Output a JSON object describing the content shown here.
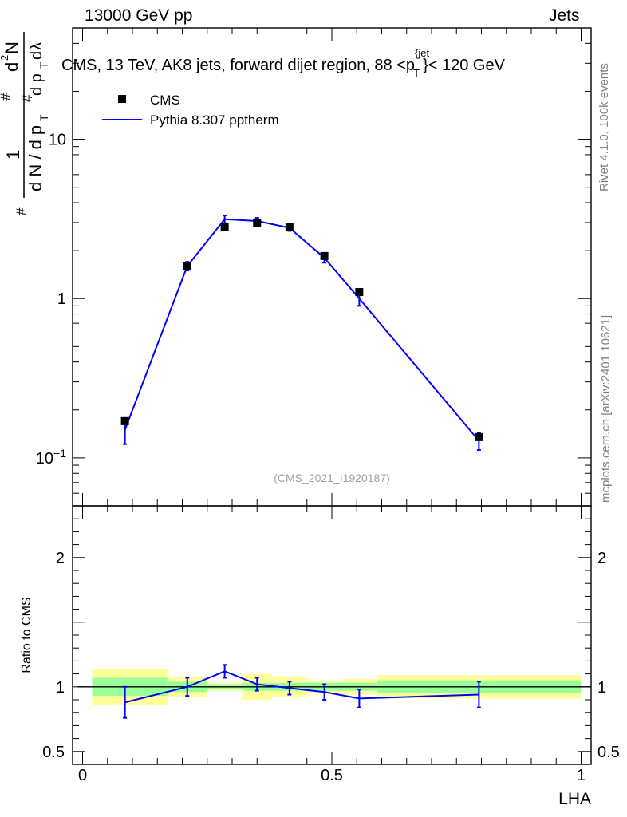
{
  "header": {
    "left": "13000 GeV pp",
    "right": "Jets"
  },
  "side_labels": {
    "rivet": "Rivet 4.1.0,  100k events",
    "source": "mcplots.cern.ch [arXiv:2401.10621]"
  },
  "chart_data": {
    "type": "line",
    "title": "CMS, 13 TeV, AK8 jets, forward dijet region, 88 <p_T^{jet}> < 120 GeV",
    "title_parts": {
      "prefix": "CMS, 13 TeV, AK8 jets, forward dijet region, 88 <p",
      "sup": "{jet",
      "sub": "T",
      "suffix": "}< 120 GeV"
    },
    "analysis_id": "(CMS_2021_I1920187)",
    "xlabel": "LHA",
    "ylabel": "1/dN/dp_T  d²N/dp_T dλ",
    "ratio_ylabel": "Ratio to CMS",
    "xlim": [
      -0.02,
      1.02
    ],
    "ylim_log": [
      0.05,
      50
    ],
    "ratio_ylim": [
      0.4,
      2.4
    ],
    "x_ticks": [
      {
        "v": 0,
        "label": "0"
      },
      {
        "v": 0.5,
        "label": "0.5"
      },
      {
        "v": 1,
        "label": "1"
      }
    ],
    "y_ticks": [
      {
        "v": 0.1,
        "label": "10",
        "exp": "−1"
      },
      {
        "v": 1,
        "label": "1"
      },
      {
        "v": 10,
        "label": "10"
      }
    ],
    "ratio_ticks": [
      {
        "v": 0.5,
        "label": "0.5"
      },
      {
        "v": 1,
        "label": "1"
      },
      {
        "v": 2,
        "label": "2"
      }
    ],
    "legend": {
      "data_label": "CMS",
      "mc_label": "Pythia 8.307 pptherm"
    },
    "bins": [
      {
        "lo": 0.0,
        "hi": 0.17,
        "data": 0.17,
        "data_err": 0.008,
        "mc": 0.15,
        "mc_err": 0.028,
        "ratio": 0.88,
        "ratio_err": 0.12,
        "band_stat": 0.07,
        "band_tot": 0.14
      },
      {
        "lo": 0.17,
        "hi": 0.25,
        "data": 1.6,
        "data_err": 0.05,
        "mc": 1.6,
        "mc_err": 0.1,
        "ratio": 1.0,
        "ratio_err": 0.07,
        "band_stat": 0.04,
        "band_tot": 0.08
      },
      {
        "lo": 0.25,
        "hi": 0.32,
        "data": 2.8,
        "data_err": 0.06,
        "mc": 3.15,
        "mc_err": 0.18,
        "ratio": 1.12,
        "ratio_err": 0.05,
        "band_stat": 0.02,
        "band_tot": 0.03
      },
      {
        "lo": 0.32,
        "hi": 0.38,
        "data": 3.0,
        "data_err": 0.08,
        "mc": 3.07,
        "mc_err": 0.14,
        "ratio": 1.02,
        "ratio_err": 0.05,
        "band_stat": 0.03,
        "band_tot": 0.1
      },
      {
        "lo": 0.38,
        "hi": 0.45,
        "data": 2.8,
        "data_err": 0.07,
        "mc": 2.78,
        "mc_err": 0.12,
        "ratio": 0.99,
        "ratio_err": 0.05,
        "band_stat": 0.03,
        "band_tot": 0.08
      },
      {
        "lo": 0.45,
        "hi": 0.52,
        "data": 1.85,
        "data_err": 0.06,
        "mc": 1.8,
        "mc_err": 0.12,
        "ratio": 0.96,
        "ratio_err": 0.06,
        "band_stat": 0.03,
        "band_tot": 0.05
      },
      {
        "lo": 0.52,
        "hi": 0.59,
        "data": 1.1,
        "data_err": 0.04,
        "mc": 1.0,
        "mc_err": 0.1,
        "ratio": 0.91,
        "ratio_err": 0.07,
        "band_stat": 0.03,
        "band_tot": 0.06
      },
      {
        "lo": 0.59,
        "hi": 1.0,
        "data": 0.135,
        "data_err": 0.005,
        "mc": 0.128,
        "mc_err": 0.016,
        "ratio": 0.94,
        "ratio_err": 0.1,
        "band_stat": 0.05,
        "band_tot": 0.09
      }
    ],
    "colors": {
      "mc": "#0000ff",
      "band_stat": "#99ff99",
      "band_tot": "#ffff99",
      "data": "#000000"
    }
  }
}
